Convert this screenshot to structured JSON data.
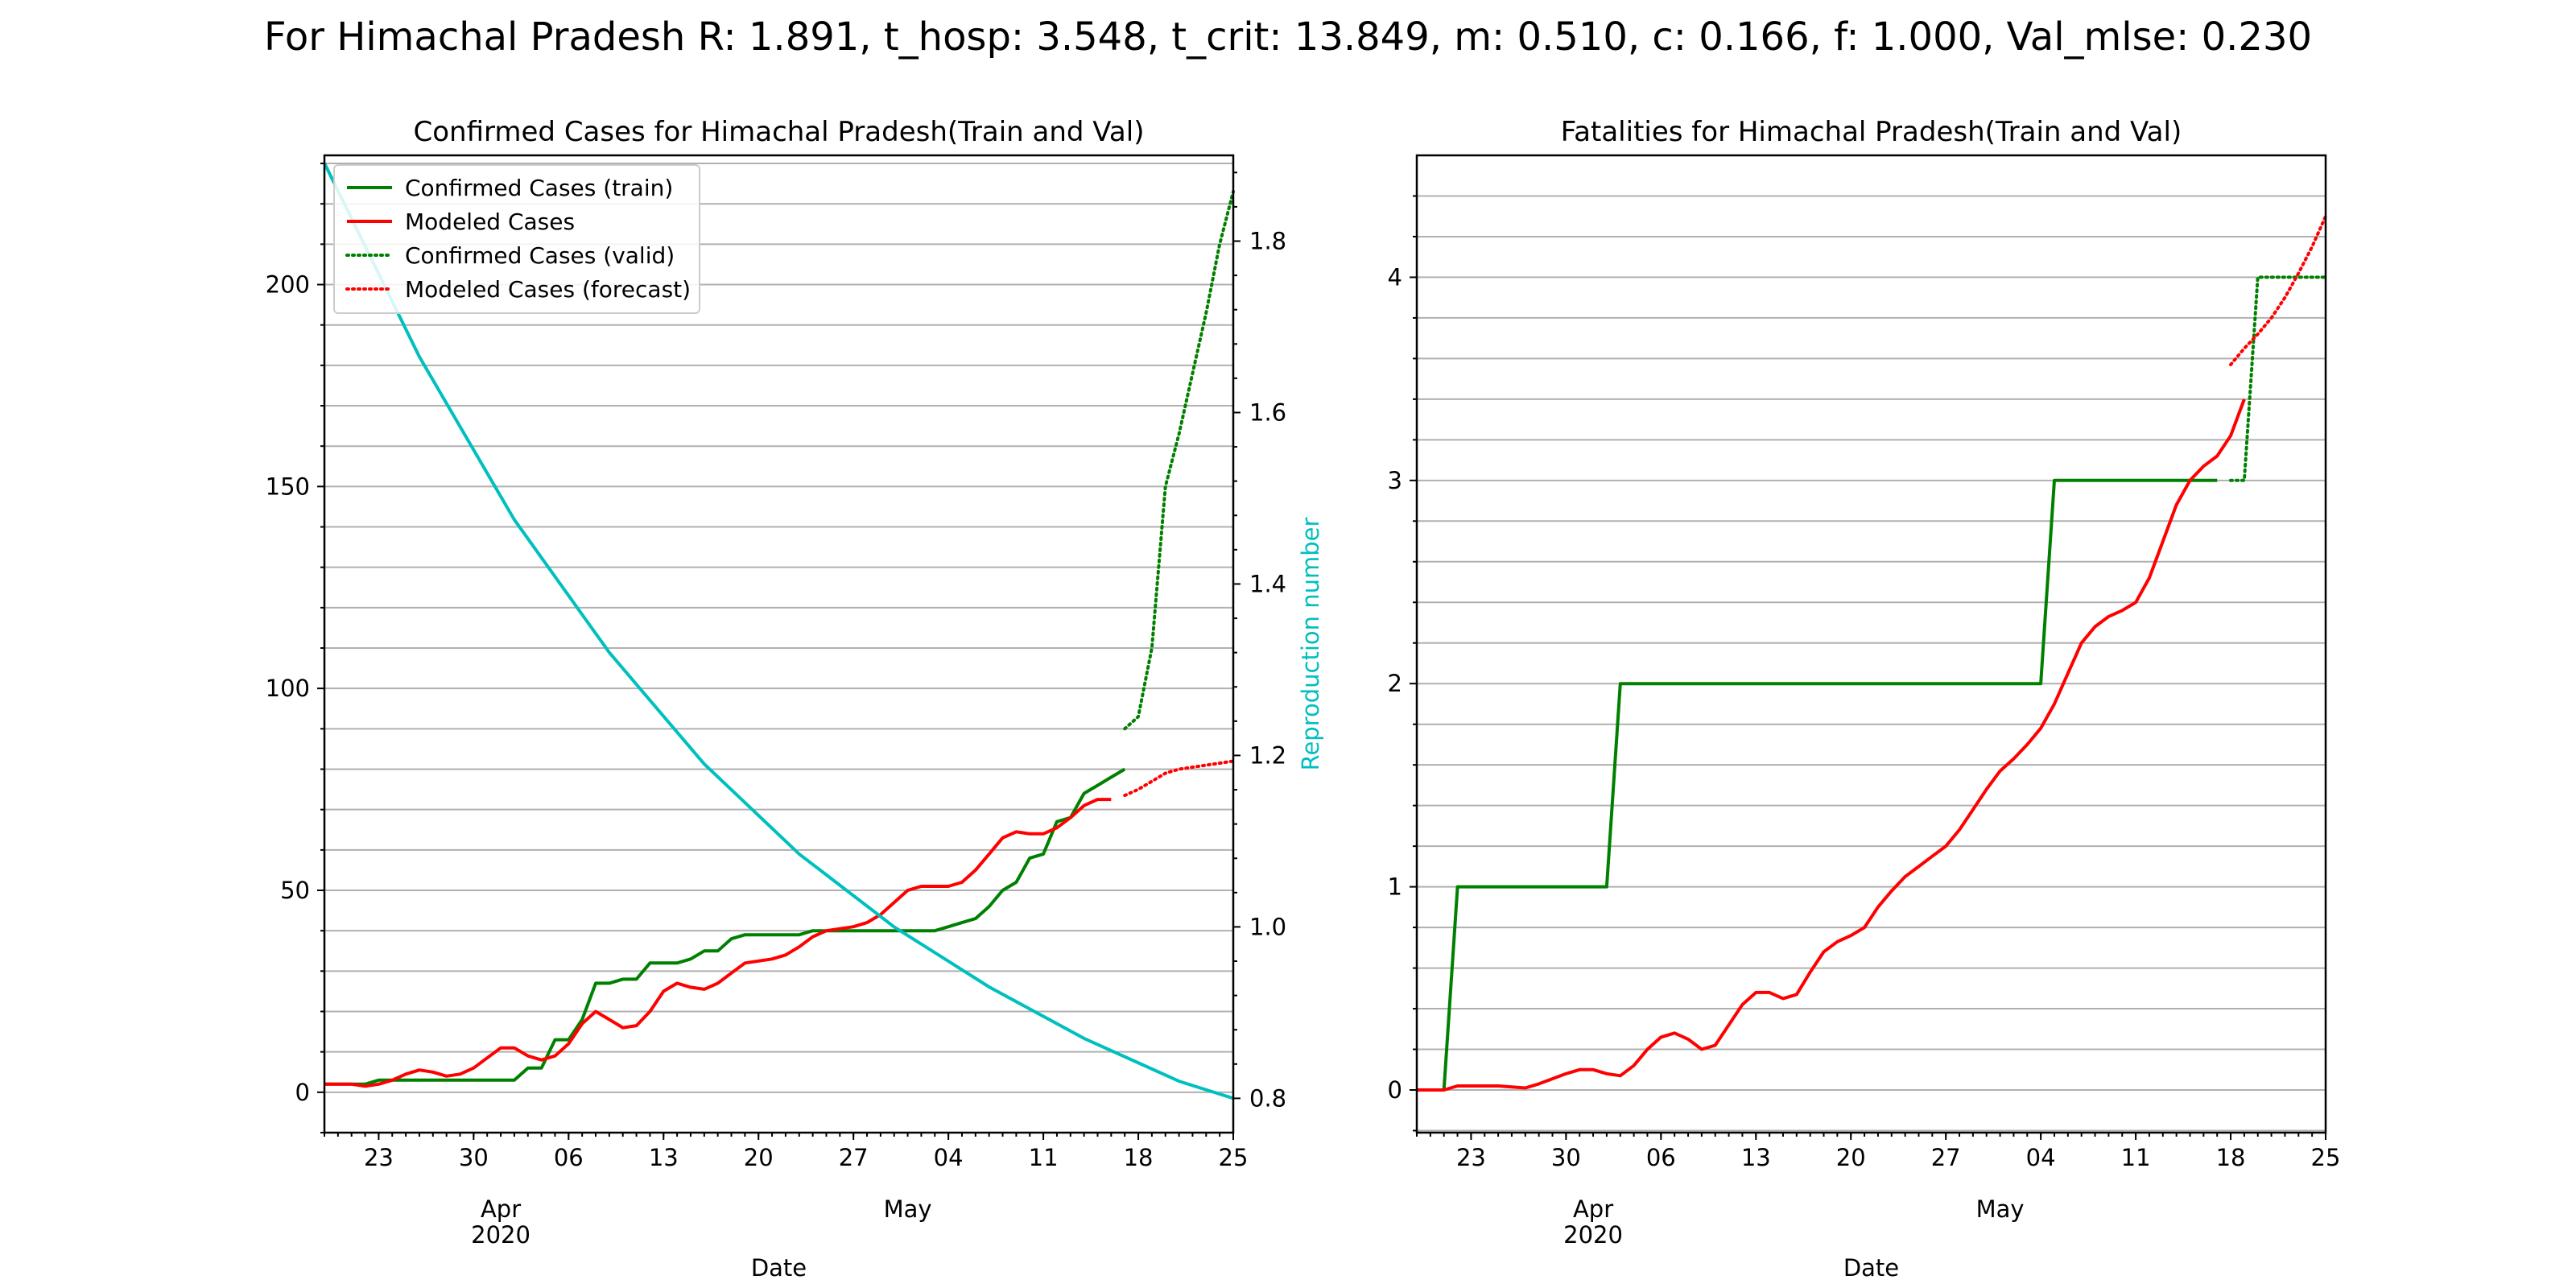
{
  "figure": {
    "suptitle": "For Himachal Pradesh R: 1.891, t_hosp: 3.548, t_crit: 13.849, m: 0.510, c: 0.166, f: 1.000, Val_mlse: 0.230"
  },
  "colors": {
    "green": "#008000",
    "red": "#ff0000",
    "cyan": "#00bfbf",
    "grid": "#b0b0b0"
  },
  "x_axis": {
    "range": [
      "2020-03-19",
      "2020-05-25"
    ],
    "major_ticks": [
      "2020-03-23",
      "2020-03-30",
      "2020-04-06",
      "2020-04-13",
      "2020-04-20",
      "2020-04-27",
      "2020-05-04",
      "2020-05-11",
      "2020-05-18",
      "2020-05-25"
    ],
    "major_tick_labels": [
      "23",
      "30",
      "06",
      "13",
      "20",
      "27",
      "04",
      "11",
      "18",
      "25"
    ],
    "month_ticks": [
      "2020-04-01",
      "2020-05-01"
    ],
    "month_labels": [
      "Apr",
      "May"
    ],
    "year_label": "2020"
  },
  "chart_data": [
    {
      "type": "line",
      "title": "Confirmed Cases for Himachal Pradesh(Train and Val)",
      "xlabel": "Date",
      "ylabel": "",
      "ylim": [
        -10,
        232
      ],
      "yticks": [
        0,
        50,
        100,
        150,
        200
      ],
      "y2label": "Reproduction number",
      "y2lim": [
        0.76,
        1.9
      ],
      "y2ticks": [
        0.8,
        1.0,
        1.2,
        1.4,
        1.6,
        1.8
      ],
      "grid": "horizontal minor",
      "legend": "upper left",
      "series": [
        {
          "name": "Confirmed Cases (train)",
          "color": "#008000",
          "style": "solid",
          "axis": "left",
          "points": [
            [
              "2020-03-19",
              2
            ],
            [
              "2020-03-20",
              2
            ],
            [
              "2020-03-21",
              2
            ],
            [
              "2020-03-22",
              2
            ],
            [
              "2020-03-23",
              3
            ],
            [
              "2020-03-24",
              3
            ],
            [
              "2020-03-25",
              3
            ],
            [
              "2020-03-26",
              3
            ],
            [
              "2020-03-27",
              3
            ],
            [
              "2020-03-28",
              3
            ],
            [
              "2020-03-29",
              3
            ],
            [
              "2020-03-30",
              3
            ],
            [
              "2020-03-31",
              3
            ],
            [
              "2020-04-01",
              3
            ],
            [
              "2020-04-02",
              3
            ],
            [
              "2020-04-03",
              6
            ],
            [
              "2020-04-04",
              6
            ],
            [
              "2020-04-05",
              13
            ],
            [
              "2020-04-06",
              13
            ],
            [
              "2020-04-07",
              18
            ],
            [
              "2020-04-08",
              27
            ],
            [
              "2020-04-09",
              27
            ],
            [
              "2020-04-10",
              28
            ],
            [
              "2020-04-11",
              28
            ],
            [
              "2020-04-12",
              32
            ],
            [
              "2020-04-13",
              32
            ],
            [
              "2020-04-14",
              32
            ],
            [
              "2020-04-15",
              33
            ],
            [
              "2020-04-16",
              35
            ],
            [
              "2020-04-17",
              35
            ],
            [
              "2020-04-18",
              38
            ],
            [
              "2020-04-19",
              39
            ],
            [
              "2020-04-20",
              39
            ],
            [
              "2020-04-21",
              39
            ],
            [
              "2020-04-22",
              39
            ],
            [
              "2020-04-23",
              39
            ],
            [
              "2020-04-24",
              40
            ],
            [
              "2020-04-25",
              40
            ],
            [
              "2020-04-26",
              40
            ],
            [
              "2020-04-27",
              40
            ],
            [
              "2020-04-28",
              40
            ],
            [
              "2020-04-29",
              40
            ],
            [
              "2020-04-30",
              40
            ],
            [
              "2020-05-01",
              40
            ],
            [
              "2020-05-02",
              40
            ],
            [
              "2020-05-03",
              40
            ],
            [
              "2020-05-04",
              41
            ],
            [
              "2020-05-05",
              42
            ],
            [
              "2020-05-06",
              43
            ],
            [
              "2020-05-07",
              46
            ],
            [
              "2020-05-08",
              50
            ],
            [
              "2020-05-09",
              52
            ],
            [
              "2020-05-10",
              58
            ],
            [
              "2020-05-11",
              59
            ],
            [
              "2020-05-12",
              67
            ],
            [
              "2020-05-13",
              68
            ],
            [
              "2020-05-14",
              74
            ],
            [
              "2020-05-15",
              76
            ],
            [
              "2020-05-16",
              78
            ],
            [
              "2020-05-17",
              80
            ]
          ]
        },
        {
          "name": "Modeled Cases",
          "color": "#ff0000",
          "style": "solid",
          "axis": "left",
          "points": [
            [
              "2020-03-19",
              2
            ],
            [
              "2020-03-20",
              2
            ],
            [
              "2020-03-21",
              2
            ],
            [
              "2020-03-22",
              1.5
            ],
            [
              "2020-03-23",
              2
            ],
            [
              "2020-03-24",
              3
            ],
            [
              "2020-03-25",
              4.5
            ],
            [
              "2020-03-26",
              5.5
            ],
            [
              "2020-03-27",
              5
            ],
            [
              "2020-03-28",
              4
            ],
            [
              "2020-03-29",
              4.5
            ],
            [
              "2020-03-30",
              6
            ],
            [
              "2020-03-31",
              8.5
            ],
            [
              "2020-04-01",
              11
            ],
            [
              "2020-04-02",
              11
            ],
            [
              "2020-04-03",
              9
            ],
            [
              "2020-04-04",
              8
            ],
            [
              "2020-04-05",
              9
            ],
            [
              "2020-04-06",
              12
            ],
            [
              "2020-04-07",
              17
            ],
            [
              "2020-04-08",
              20
            ],
            [
              "2020-04-09",
              18
            ],
            [
              "2020-04-10",
              16
            ],
            [
              "2020-04-11",
              16.5
            ],
            [
              "2020-04-12",
              20
            ],
            [
              "2020-04-13",
              25
            ],
            [
              "2020-04-14",
              27
            ],
            [
              "2020-04-15",
              26
            ],
            [
              "2020-04-16",
              25.5
            ],
            [
              "2020-04-17",
              27
            ],
            [
              "2020-04-18",
              29.5
            ],
            [
              "2020-04-19",
              32
            ],
            [
              "2020-04-20",
              32.5
            ],
            [
              "2020-04-21",
              33
            ],
            [
              "2020-04-22",
              34
            ],
            [
              "2020-04-23",
              36
            ],
            [
              "2020-04-24",
              38.5
            ],
            [
              "2020-04-25",
              40
            ],
            [
              "2020-04-26",
              40.5
            ],
            [
              "2020-04-27",
              41
            ],
            [
              "2020-04-28",
              42
            ],
            [
              "2020-04-29",
              44
            ],
            [
              "2020-04-30",
              47
            ],
            [
              "2020-05-01",
              50
            ],
            [
              "2020-05-02",
              51
            ],
            [
              "2020-05-03",
              51
            ],
            [
              "2020-05-04",
              51
            ],
            [
              "2020-05-05",
              52
            ],
            [
              "2020-05-06",
              55
            ],
            [
              "2020-05-07",
              59
            ],
            [
              "2020-05-08",
              63
            ],
            [
              "2020-05-09",
              64.5
            ],
            [
              "2020-05-10",
              64
            ],
            [
              "2020-05-11",
              64
            ],
            [
              "2020-05-12",
              65.5
            ],
            [
              "2020-05-13",
              68
            ],
            [
              "2020-05-14",
              71
            ],
            [
              "2020-05-15",
              72.5
            ],
            [
              "2020-05-16",
              72.5
            ]
          ]
        },
        {
          "name": "Confirmed Cases (valid)",
          "color": "#008000",
          "style": "dotted",
          "axis": "left",
          "points": [
            [
              "2020-05-17",
              90
            ],
            [
              "2020-05-18",
              93
            ],
            [
              "2020-05-19",
              110
            ],
            [
              "2020-05-20",
              150
            ],
            [
              "2020-05-21",
              163
            ],
            [
              "2020-05-22",
              178
            ],
            [
              "2020-05-23",
              193
            ],
            [
              "2020-05-24",
              210
            ],
            [
              "2020-05-25",
              223
            ]
          ]
        },
        {
          "name": "Modeled Cases (forecast)",
          "color": "#ff0000",
          "style": "dotted",
          "axis": "left",
          "points": [
            [
              "2020-05-17",
              73.5
            ],
            [
              "2020-05-18",
              75
            ],
            [
              "2020-05-19",
              77
            ],
            [
              "2020-05-20",
              79
            ],
            [
              "2020-05-21",
              80
            ],
            [
              "2020-05-22",
              80.5
            ],
            [
              "2020-05-23",
              81
            ],
            [
              "2020-05-24",
              81.5
            ],
            [
              "2020-05-25",
              82
            ]
          ]
        },
        {
          "name": "",
          "color": "#00bfbf",
          "style": "solid",
          "axis": "right",
          "points": [
            [
              "2020-03-19",
              1.891
            ],
            [
              "2020-03-26",
              1.665
            ],
            [
              "2020-04-02",
              1.475
            ],
            [
              "2020-04-09",
              1.32
            ],
            [
              "2020-04-16",
              1.19
            ],
            [
              "2020-04-23",
              1.085
            ],
            [
              "2020-04-30",
              1.0
            ],
            [
              "2020-05-07",
              0.93
            ],
            [
              "2020-05-14",
              0.87
            ],
            [
              "2020-05-21",
              0.82
            ],
            [
              "2020-05-25",
              0.8
            ]
          ]
        }
      ]
    },
    {
      "type": "line",
      "title": "Fatalities for Himachal Pradesh(Train and Val)",
      "xlabel": "Date",
      "ylabel": "",
      "ylim": [
        -0.21,
        4.6
      ],
      "yticks": [
        0,
        1,
        2,
        3,
        4
      ],
      "grid": "horizontal minor",
      "series": [
        {
          "name": "",
          "color": "#008000",
          "style": "solid",
          "points": [
            [
              "2020-03-19",
              0
            ],
            [
              "2020-03-21",
              0
            ],
            [
              "2020-03-22",
              1
            ],
            [
              "2020-04-02",
              1
            ],
            [
              "2020-04-03",
              2
            ],
            [
              "2020-05-04",
              2
            ],
            [
              "2020-05-05",
              3
            ],
            [
              "2020-05-17",
              3
            ]
          ]
        },
        {
          "name": "",
          "color": "#ff0000",
          "style": "solid",
          "points": [
            [
              "2020-03-19",
              0
            ],
            [
              "2020-03-21",
              0
            ],
            [
              "2020-03-22",
              0.02
            ],
            [
              "2020-03-25",
              0.02
            ],
            [
              "2020-03-27",
              0.01
            ],
            [
              "2020-03-28",
              0.03
            ],
            [
              "2020-03-30",
              0.08
            ],
            [
              "2020-03-31",
              0.1
            ],
            [
              "2020-04-01",
              0.1
            ],
            [
              "2020-04-02",
              0.08
            ],
            [
              "2020-04-03",
              0.07
            ],
            [
              "2020-04-04",
              0.12
            ],
            [
              "2020-04-05",
              0.2
            ],
            [
              "2020-04-06",
              0.26
            ],
            [
              "2020-04-07",
              0.28
            ],
            [
              "2020-04-08",
              0.25
            ],
            [
              "2020-04-09",
              0.2
            ],
            [
              "2020-04-10",
              0.22
            ],
            [
              "2020-04-11",
              0.32
            ],
            [
              "2020-04-12",
              0.42
            ],
            [
              "2020-04-13",
              0.48
            ],
            [
              "2020-04-14",
              0.48
            ],
            [
              "2020-04-15",
              0.45
            ],
            [
              "2020-04-16",
              0.47
            ],
            [
              "2020-04-17",
              0.58
            ],
            [
              "2020-04-18",
              0.68
            ],
            [
              "2020-04-19",
              0.73
            ],
            [
              "2020-04-20",
              0.76
            ],
            [
              "2020-04-21",
              0.8
            ],
            [
              "2020-04-22",
              0.9
            ],
            [
              "2020-04-23",
              0.98
            ],
            [
              "2020-04-24",
              1.05
            ],
            [
              "2020-04-25",
              1.1
            ],
            [
              "2020-04-26",
              1.15
            ],
            [
              "2020-04-27",
              1.2
            ],
            [
              "2020-04-28",
              1.28
            ],
            [
              "2020-04-29",
              1.38
            ],
            [
              "2020-04-30",
              1.48
            ],
            [
              "2020-05-01",
              1.57
            ],
            [
              "2020-05-02",
              1.63
            ],
            [
              "2020-05-03",
              1.7
            ],
            [
              "2020-05-04",
              1.78
            ],
            [
              "2020-05-05",
              1.9
            ],
            [
              "2020-05-06",
              2.05
            ],
            [
              "2020-05-07",
              2.2
            ],
            [
              "2020-05-08",
              2.28
            ],
            [
              "2020-05-09",
              2.33
            ],
            [
              "2020-05-10",
              2.36
            ],
            [
              "2020-05-11",
              2.4
            ],
            [
              "2020-05-12",
              2.52
            ],
            [
              "2020-05-13",
              2.7
            ],
            [
              "2020-05-14",
              2.88
            ],
            [
              "2020-05-15",
              3.0
            ],
            [
              "2020-05-16",
              3.07
            ],
            [
              "2020-05-17",
              3.12
            ],
            [
              "2020-05-18",
              3.22
            ],
            [
              "2020-05-19",
              3.4
            ]
          ]
        },
        {
          "name": "",
          "color": "#008000",
          "style": "dotted",
          "points": [
            [
              "2020-05-18",
              3
            ],
            [
              "2020-05-19",
              3
            ],
            [
              "2020-05-20",
              4
            ],
            [
              "2020-05-25",
              4
            ]
          ]
        },
        {
          "name": "",
          "color": "#ff0000",
          "style": "dotted",
          "points": [
            [
              "2020-05-18",
              3.57
            ],
            [
              "2020-05-19",
              3.65
            ],
            [
              "2020-05-20",
              3.72
            ],
            [
              "2020-05-21",
              3.8
            ],
            [
              "2020-05-22",
              3.9
            ],
            [
              "2020-05-23",
              4.02
            ],
            [
              "2020-05-24",
              4.15
            ],
            [
              "2020-05-25",
              4.3
            ]
          ]
        }
      ]
    }
  ]
}
